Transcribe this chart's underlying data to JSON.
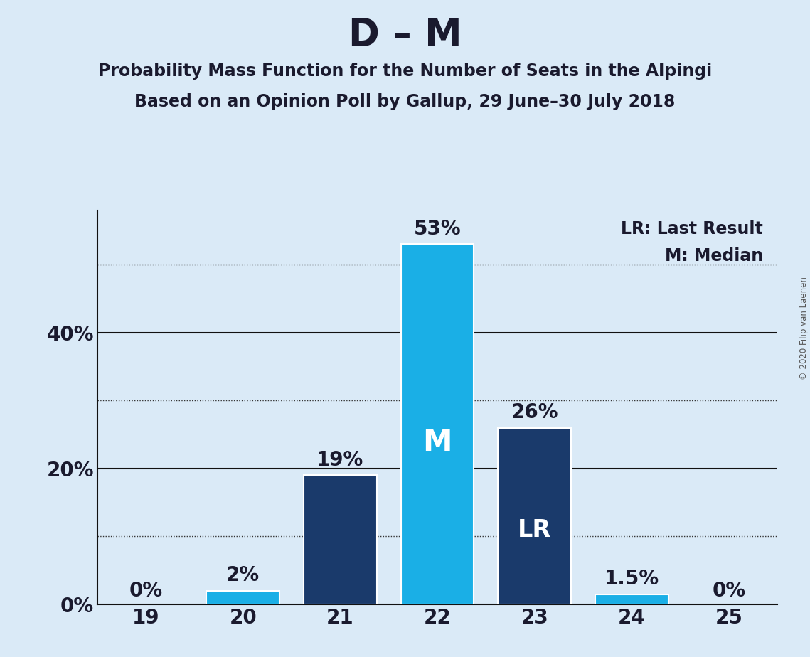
{
  "title": "D – M",
  "subtitle1": "Probability Mass Function for the Number of Seats in the Alpingi",
  "subtitle2": "Based on an Opinion Poll by Gallup, 29 June–30 July 2018",
  "copyright": "© 2020 Filip van Laenen",
  "categories": [
    19,
    20,
    21,
    22,
    23,
    24,
    25
  ],
  "values": [
    0,
    2,
    19,
    53,
    26,
    1.5,
    0
  ],
  "bar_colors": [
    "#1a3a6b",
    "#1aafe6",
    "#1a3a6b",
    "#1aafe6",
    "#1a3a6b",
    "#1aafe6",
    "#1a3a6b"
  ],
  "median_seat": 22,
  "last_result_seat": 23,
  "median_label": "M",
  "last_result_label": "LR",
  "legend_lr": "LR: Last Result",
  "legend_m": "M: Median",
  "background_color": "#daeaf7",
  "ylim": [
    0,
    58
  ],
  "yticks": [
    0,
    20,
    40
  ],
  "ytick_labels": [
    "0%",
    "20%",
    "40%"
  ],
  "dotted_grid_lines": [
    10,
    30,
    50
  ],
  "solid_grid_lines": [
    20,
    40
  ],
  "title_fontsize": 38,
  "subtitle_fontsize": 17,
  "tick_fontsize": 20,
  "annotation_fontsize": 20,
  "legend_fontsize": 17,
  "bar_width": 0.75,
  "dark_blue": "#1e3a6e",
  "light_blue": "#1aafe6"
}
